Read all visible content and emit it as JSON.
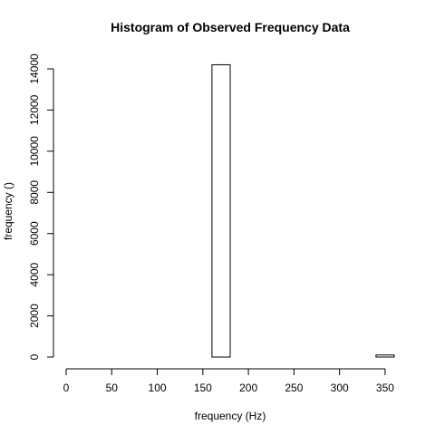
{
  "chart_data": {
    "type": "bar",
    "title": "Histogram of Observed Frequency Data",
    "xlabel": "frequency (Hz)",
    "ylabel": "frequency ()",
    "xlim": [
      0,
      360
    ],
    "ylim": [
      0,
      14000
    ],
    "xticks": [
      0,
      50,
      100,
      150,
      200,
      250,
      300,
      350
    ],
    "yticks": [
      0,
      2000,
      4000,
      6000,
      8000,
      10000,
      12000,
      14000
    ],
    "bins": [
      {
        "x0": 0,
        "x1": 20,
        "count": 0
      },
      {
        "x0": 20,
        "x1": 40,
        "count": 0
      },
      {
        "x0": 40,
        "x1": 60,
        "count": 0
      },
      {
        "x0": 60,
        "x1": 80,
        "count": 0
      },
      {
        "x0": 80,
        "x1": 100,
        "count": 0
      },
      {
        "x0": 100,
        "x1": 120,
        "count": 0
      },
      {
        "x0": 120,
        "x1": 140,
        "count": 0
      },
      {
        "x0": 140,
        "x1": 160,
        "count": 0
      },
      {
        "x0": 160,
        "x1": 180,
        "count": 14200
      },
      {
        "x0": 180,
        "x1": 200,
        "count": 0
      },
      {
        "x0": 200,
        "x1": 220,
        "count": 0
      },
      {
        "x0": 220,
        "x1": 240,
        "count": 0
      },
      {
        "x0": 240,
        "x1": 260,
        "count": 0
      },
      {
        "x0": 260,
        "x1": 280,
        "count": 0
      },
      {
        "x0": 280,
        "x1": 300,
        "count": 0
      },
      {
        "x0": 300,
        "x1": 320,
        "count": 0
      },
      {
        "x0": 320,
        "x1": 340,
        "count": 0
      },
      {
        "x0": 340,
        "x1": 360,
        "count": 100
      }
    ],
    "grid": false
  }
}
